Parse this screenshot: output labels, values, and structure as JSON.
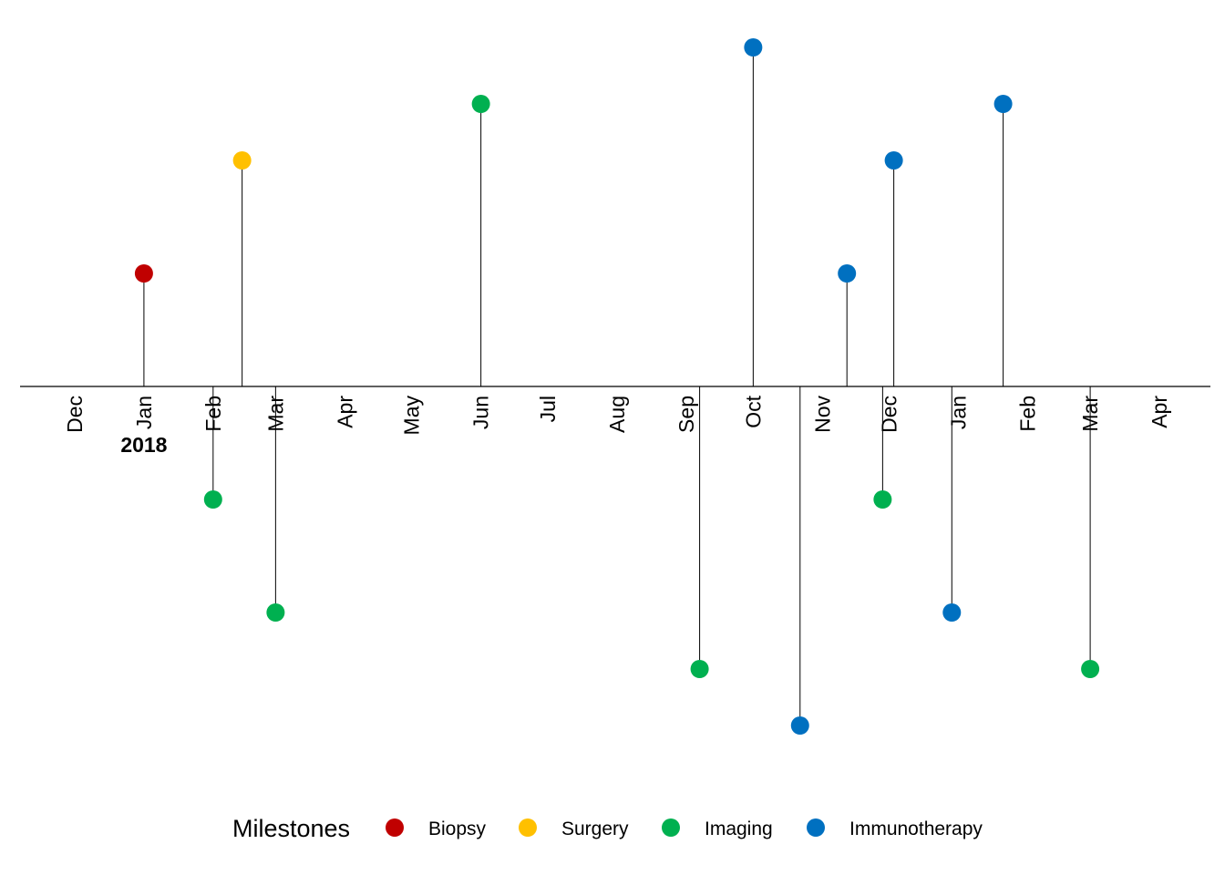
{
  "chart_data": {
    "type": "scatter",
    "subtype": "timeline-lollipop",
    "x_axis": {
      "type": "date",
      "range": [
        "2017-12-01",
        "2019-04-01"
      ],
      "tick_labels": [
        {
          "date": "2017-12-01",
          "label": "Dec"
        },
        {
          "date": "2018-01-01",
          "label": "Jan"
        },
        {
          "date": "2018-02-01",
          "label": "Feb"
        },
        {
          "date": "2018-03-01",
          "label": "Mar"
        },
        {
          "date": "2018-04-01",
          "label": "Apr"
        },
        {
          "date": "2018-05-01",
          "label": "May"
        },
        {
          "date": "2018-06-01",
          "label": "Jun"
        },
        {
          "date": "2018-07-01",
          "label": "Jul"
        },
        {
          "date": "2018-08-01",
          "label": "Aug"
        },
        {
          "date": "2018-09-01",
          "label": "Sep"
        },
        {
          "date": "2018-10-01",
          "label": "Oct"
        },
        {
          "date": "2018-11-01",
          "label": "Nov"
        },
        {
          "date": "2018-12-01",
          "label": "Dec"
        },
        {
          "date": "2019-01-01",
          "label": "Jan"
        },
        {
          "date": "2019-02-01",
          "label": "Feb"
        },
        {
          "date": "2019-03-01",
          "label": "Mar"
        },
        {
          "date": "2019-04-01",
          "label": "Apr"
        }
      ],
      "year_labels": [
        {
          "date": "2018-01-01",
          "label": "2018"
        }
      ]
    },
    "y_axis": {
      "visible": false,
      "range": [
        -6,
        6
      ]
    },
    "grid": false,
    "legend": {
      "title": "Milestones",
      "position": "bottom",
      "entries": [
        {
          "name": "Biopsy",
          "color": "#C00000"
        },
        {
          "name": "Surgery",
          "color": "#FFC000"
        },
        {
          "name": "Imaging",
          "color": "#00B050"
        },
        {
          "name": "Immunotherapy",
          "color": "#0070C0"
        }
      ]
    },
    "events": [
      {
        "date": "2018-01-01",
        "value": 2,
        "category": "Biopsy"
      },
      {
        "date": "2018-02-01",
        "value": -2,
        "category": "Imaging"
      },
      {
        "date": "2018-02-14",
        "value": 4,
        "category": "Surgery"
      },
      {
        "date": "2018-03-01",
        "value": -4,
        "category": "Imaging"
      },
      {
        "date": "2018-06-01",
        "value": 5,
        "category": "Imaging"
      },
      {
        "date": "2018-09-07",
        "value": -5,
        "category": "Imaging"
      },
      {
        "date": "2018-10-01",
        "value": 6,
        "category": "Immunotherapy"
      },
      {
        "date": "2018-10-22",
        "value": -6,
        "category": "Immunotherapy"
      },
      {
        "date": "2018-11-12",
        "value": 2,
        "category": "Immunotherapy"
      },
      {
        "date": "2018-11-28",
        "value": -2,
        "category": "Imaging"
      },
      {
        "date": "2018-12-03",
        "value": 4,
        "category": "Immunotherapy"
      },
      {
        "date": "2018-12-29",
        "value": -4,
        "category": "Immunotherapy"
      },
      {
        "date": "2019-01-21",
        "value": 5,
        "category": "Immunotherapy"
      },
      {
        "date": "2019-03-01",
        "value": -5,
        "category": "Imaging"
      }
    ]
  }
}
